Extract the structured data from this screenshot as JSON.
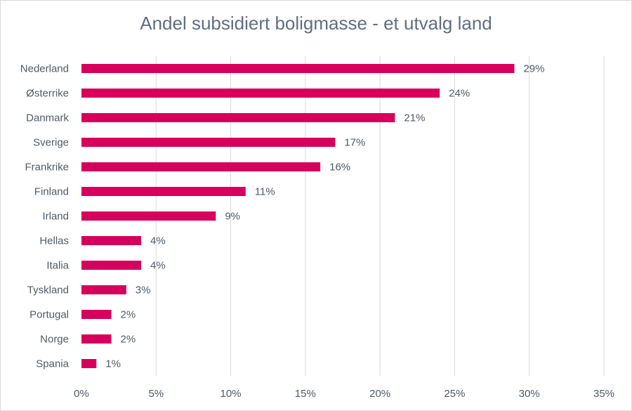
{
  "chart_data": {
    "type": "bar",
    "orientation": "horizontal",
    "title": "Andel subsidiert boligmasse - et utvalg land",
    "categories": [
      "Nederland",
      "Østerrike",
      "Danmark",
      "Sverige",
      "Frankrike",
      "Finland",
      "Irland",
      "Hellas",
      "Italia",
      "Tyskland",
      "Portugal",
      "Norge",
      "Spania"
    ],
    "values": [
      29,
      24,
      21,
      17,
      16,
      11,
      9,
      4,
      4,
      3,
      2,
      2,
      1
    ],
    "value_labels": [
      "29%",
      "24%",
      "21%",
      "17%",
      "16%",
      "11%",
      "9%",
      "4%",
      "4%",
      "3%",
      "2%",
      "2%",
      "1%"
    ],
    "xlim": [
      0,
      35
    ],
    "xticks": [
      0,
      5,
      10,
      15,
      20,
      25,
      30,
      35
    ],
    "xtick_labels": [
      "0%",
      "5%",
      "10%",
      "15%",
      "20%",
      "25%",
      "30%",
      "35%"
    ],
    "xlabel": "",
    "ylabel": "",
    "grid": "vertical",
    "legend": "none",
    "bar_color": "#d6005c",
    "grid_color": "#d9d9d9"
  }
}
